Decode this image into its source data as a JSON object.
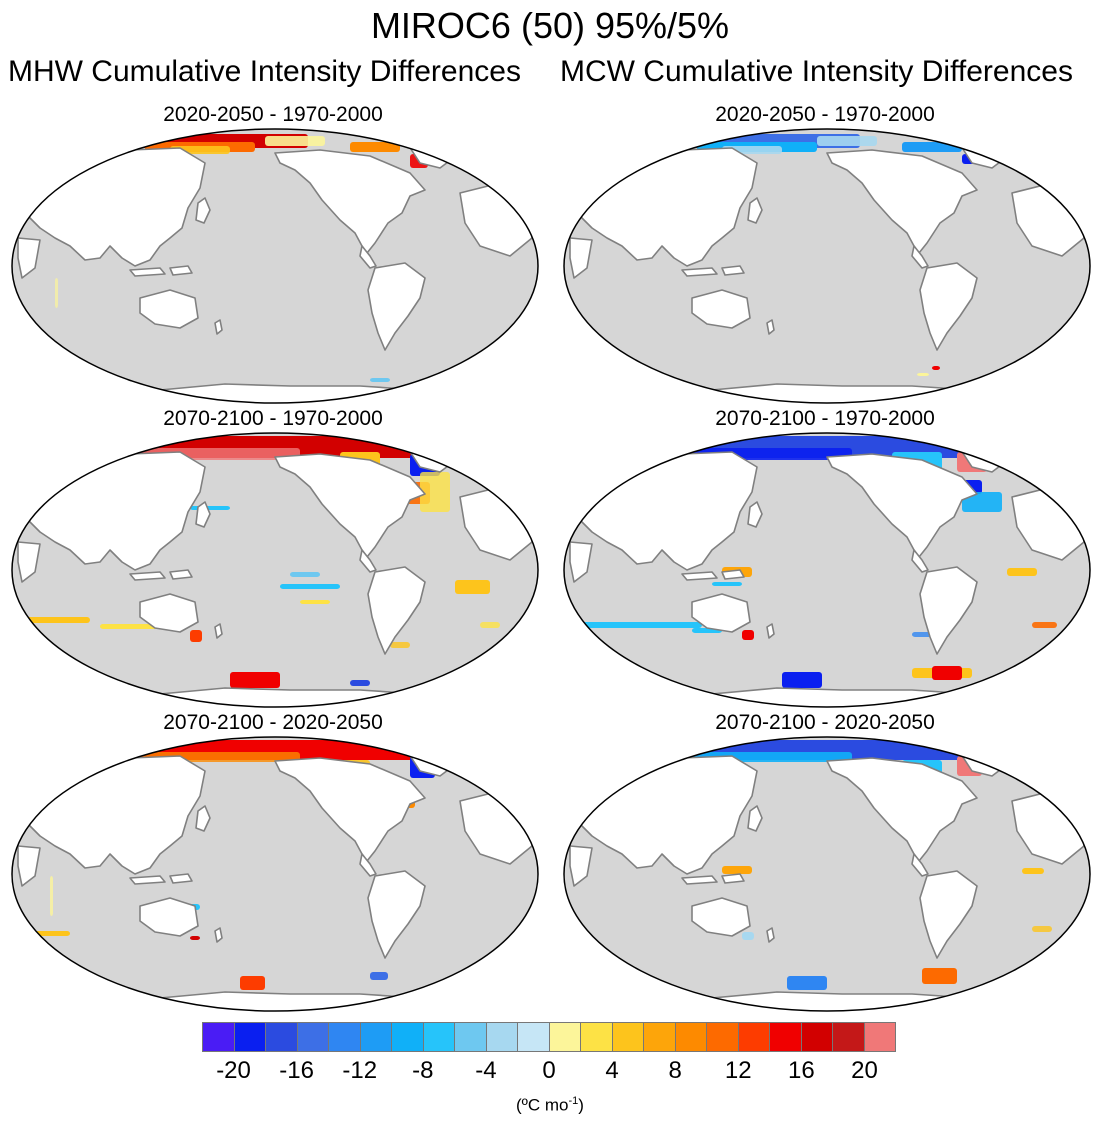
{
  "figure": {
    "title": "MIROC6 (50) 95%/5%",
    "left_column_title": "MHW Cumulative Intensity Differences",
    "right_column_title": "MCW Cumulative Intensity Differences"
  },
  "panels": [
    {
      "period": "2020-2050 - 1970-2000",
      "variable": "MHW",
      "pattern": "early-mhw"
    },
    {
      "period": "2020-2050 - 1970-2000",
      "variable": "MCW",
      "pattern": "early-mcw"
    },
    {
      "period": "2070-2100 - 1970-2000",
      "variable": "MHW",
      "pattern": "late-mhw"
    },
    {
      "period": "2070-2100 - 1970-2000",
      "variable": "MCW",
      "pattern": "late-mcw"
    },
    {
      "period": "2070-2100 - 2020-2050",
      "variable": "MHW",
      "pattern": "diff-mhw"
    },
    {
      "period": "2070-2100 - 2020-2050",
      "variable": "MCW",
      "pattern": "diff-mcw"
    }
  ],
  "colorbar": {
    "colors": [
      "#4a1cf5",
      "#0a1ff0",
      "#2b4be0",
      "#3d6fe6",
      "#2f86f2",
      "#1e9cf5",
      "#10b0f8",
      "#26c4fa",
      "#6ec8f0",
      "#a7d8f0",
      "#c6e6f6",
      "#fcf59a",
      "#fde245",
      "#fdc41c",
      "#fda50a",
      "#fd8a00",
      "#fd6a00",
      "#fd3c00",
      "#f00000",
      "#d20000",
      "#c41818",
      "#f07878"
    ],
    "tick_labels": [
      "-20",
      "-16",
      "-12",
      "-8",
      "-4",
      "0",
      "4",
      "8",
      "12",
      "16",
      "20"
    ],
    "units_base": "(ºC mo",
    "units_exp": "-1",
    "units_close": ")"
  },
  "style": {
    "ocean": "#d6d6d6",
    "land": "#ffffff",
    "coast": "#808080"
  }
}
